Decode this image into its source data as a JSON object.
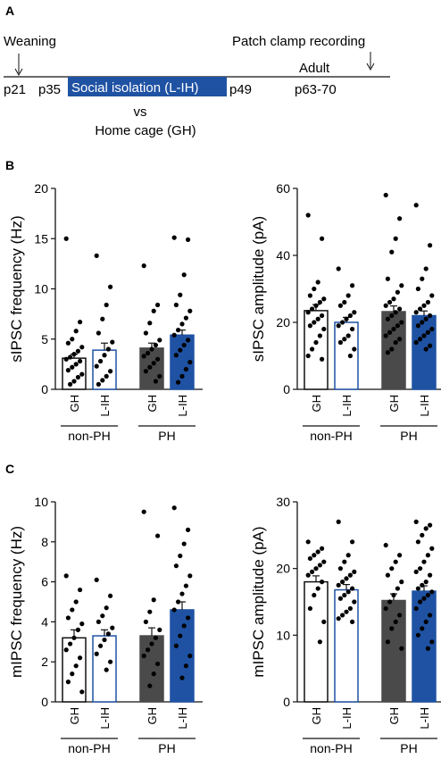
{
  "panel_labels": {
    "a": "A",
    "b": "B",
    "c": "C"
  },
  "timeline": {
    "weaning": "Weaning",
    "patch_clamp": "Patch clamp recording",
    "adult": "Adult",
    "p21": "p21",
    "p35": "p35",
    "isolation": "Social isolation (L-IH)",
    "p49": "p49",
    "p63_70": "p63-70",
    "vs": "vs",
    "home_cage": "Home cage (GH)",
    "isolation_color": "#1f52a3"
  },
  "colors": {
    "gh_nonph_fill": "#ffffff",
    "lih_nonph_fill": "#ffffff",
    "lih_nonph_edge": "#1f52a3",
    "gh_ph_fill": "#4a4a4a",
    "lih_ph_fill": "#1f52a3",
    "dot": "#000000"
  },
  "chart_data": [
    {
      "type": "bar",
      "ylabel": "sIPSC frequency (Hz)",
      "ylim": [
        0,
        20
      ],
      "yticks": [
        "0",
        "5",
        "10",
        "15",
        "20"
      ],
      "categories": [
        "GH",
        "L-IH",
        "GH",
        "L-IH"
      ],
      "groups": [
        "non-PH",
        "PH"
      ],
      "values": [
        3.1,
        3.9,
        4.1,
        5.4
      ],
      "errors": [
        0.4,
        0.7,
        0.5,
        0.5
      ],
      "points": [
        [
          15.0,
          6.7,
          5.8,
          5.0,
          4.6,
          4.2,
          3.8,
          3.5,
          3.2,
          3.0,
          2.8,
          2.5,
          2.2,
          1.9,
          1.5,
          1.2,
          0.8,
          0.5
        ],
        [
          13.3,
          10.2,
          8.4,
          7.0,
          5.6,
          4.7,
          4.0,
          3.4,
          2.8,
          2.3,
          1.8,
          1.3,
          0.9,
          0.5
        ],
        [
          12.3,
          8.4,
          7.8,
          6.6,
          5.6,
          4.9,
          4.4,
          4.0,
          3.6,
          3.3,
          3.0,
          2.6,
          2.2,
          1.8,
          1.3,
          0.8
        ],
        [
          15.1,
          14.9,
          11.4,
          9.4,
          8.4,
          7.8,
          7.1,
          6.5,
          5.9,
          5.4,
          4.9,
          4.4,
          3.9,
          3.4,
          2.7,
          2.0,
          1.3,
          0.7
        ]
      ]
    },
    {
      "type": "bar",
      "ylabel": "sIPSC amplitude (pA)",
      "ylim": [
        0,
        60
      ],
      "yticks": [
        "0",
        "20",
        "40",
        "60"
      ],
      "categories": [
        "GH",
        "L-IH",
        "GH",
        "L-IH"
      ],
      "groups": [
        "non-PH",
        "PH"
      ],
      "values": [
        23.5,
        20.0,
        23.2,
        22.0
      ],
      "errors": [
        1.8,
        1.5,
        1.7,
        1.4
      ],
      "points": [
        [
          52,
          45,
          32,
          30,
          28,
          27,
          26,
          25,
          24,
          23,
          22,
          21,
          20,
          19,
          18,
          16,
          14,
          12,
          10,
          9
        ],
        [
          36,
          31,
          28,
          26,
          25,
          23,
          22,
          21,
          20,
          19,
          18,
          16,
          15,
          14,
          12,
          10
        ],
        [
          58,
          51,
          45,
          41,
          33,
          31,
          29,
          27,
          26,
          25,
          24,
          23,
          22,
          21,
          20,
          19,
          18,
          17,
          16,
          15,
          14,
          12,
          11
        ],
        [
          55,
          43,
          36,
          33,
          30,
          28,
          26,
          25,
          24,
          23,
          22,
          21,
          20,
          19,
          18,
          17,
          16,
          15,
          14,
          13,
          12
        ]
      ]
    },
    {
      "type": "bar",
      "ylabel": "mIPSC frequency (Hz)",
      "ylim": [
        0,
        10
      ],
      "yticks": [
        "0",
        "2",
        "4",
        "6",
        "8",
        "10"
      ],
      "categories": [
        "GH",
        "L-IH",
        "GH",
        "L-IH"
      ],
      "groups": [
        "non-PH",
        "PH"
      ],
      "values": [
        3.2,
        3.3,
        3.3,
        4.6
      ],
      "errors": [
        0.4,
        0.3,
        0.4,
        0.4
      ],
      "points": [
        [
          6.3,
          5.6,
          5.0,
          4.6,
          4.2,
          3.9,
          3.6,
          3.2,
          2.9,
          2.6,
          2.2,
          1.8,
          1.4,
          1.0,
          0.5
        ],
        [
          6.1,
          5.3,
          4.7,
          4.3,
          4.0,
          3.7,
          3.4,
          3.1,
          2.8,
          2.4,
          2.0,
          1.6
        ],
        [
          9.5,
          8.3,
          5.1,
          4.5,
          4.0,
          3.6,
          3.2,
          2.9,
          2.6,
          2.3,
          1.9,
          1.4,
          0.8
        ],
        [
          9.7,
          8.6,
          7.9,
          7.3,
          6.8,
          6.3,
          5.8,
          5.4,
          5.0,
          4.6,
          4.2,
          3.8,
          3.3,
          2.8,
          2.3,
          1.8,
          1.2
        ]
      ]
    },
    {
      "type": "bar",
      "ylabel": "mIPSC amplitude (pA)",
      "ylim": [
        0,
        30
      ],
      "yticks": [
        "0",
        "10",
        "20",
        "30"
      ],
      "categories": [
        "GH",
        "L-IH",
        "GH",
        "L-IH"
      ],
      "groups": [
        "non-PH",
        "PH"
      ],
      "values": [
        18.0,
        16.8,
        15.2,
        16.6
      ],
      "errors": [
        0.9,
        0.8,
        1.0,
        0.8
      ],
      "points": [
        [
          24,
          23,
          22.5,
          22,
          21.5,
          21,
          20.5,
          20,
          19.5,
          19,
          18,
          17,
          16,
          14,
          12,
          9
        ],
        [
          27,
          24,
          22,
          21,
          20,
          19.5,
          19,
          18.5,
          18,
          17.5,
          17,
          16.5,
          16,
          15.5,
          15,
          14,
          13.5,
          13,
          12.5,
          12
        ],
        [
          23.5,
          22,
          21,
          20,
          19,
          18,
          17,
          16,
          15,
          14,
          13,
          12,
          11,
          9,
          8
        ],
        [
          27,
          26.5,
          26,
          25,
          24,
          23,
          22,
          21,
          20,
          19.5,
          19,
          18,
          17.5,
          17,
          16.5,
          16,
          15.5,
          15,
          14,
          13,
          12,
          11,
          10,
          9,
          8
        ]
      ]
    }
  ]
}
